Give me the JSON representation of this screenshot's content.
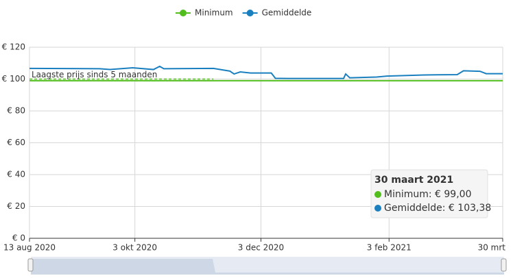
{
  "chart_data": {
    "type": "line",
    "x": [
      "2020-08-13",
      "2020-09-16",
      "2020-09-21",
      "2020-10-02",
      "2020-10-12",
      "2020-10-15",
      "2020-10-17",
      "2020-11-10",
      "2020-11-18",
      "2020-11-20",
      "2020-11-23",
      "2020-11-28",
      "2020-12-08",
      "2020-12-10",
      "2020-12-16",
      "2021-01-12",
      "2021-01-13",
      "2021-01-15",
      "2021-01-28",
      "2021-02-02",
      "2021-02-20",
      "2021-03-08",
      "2021-03-11",
      "2021-03-19",
      "2021-03-22",
      "2021-03-30"
    ],
    "series": [
      {
        "name": "Minimum",
        "color": "#52be1e",
        "values": [
          99,
          99,
          99,
          99,
          99,
          99,
          99,
          99,
          99,
          99,
          99,
          99,
          99,
          99,
          99,
          99,
          99,
          99,
          99,
          99,
          99,
          99,
          99,
          99,
          99,
          99
        ]
      },
      {
        "name": "Gemiddelde",
        "color": "#1a7fbf",
        "values": [
          106.7,
          106.5,
          106.0,
          107.1,
          106.0,
          108.0,
          106.5,
          106.7,
          105.0,
          103.2,
          104.5,
          103.8,
          103.8,
          100.5,
          100.4,
          100.4,
          103.2,
          100.8,
          101.3,
          101.9,
          102.6,
          102.8,
          105.2,
          104.9,
          103.4,
          103.38
        ]
      }
    ],
    "xlim": [
      "2020-08-13",
      "2021-03-30"
    ],
    "xticks": [
      {
        "value": "2020-08-13",
        "label": "13 aug 2020"
      },
      {
        "value": "2020-10-03",
        "label": "3 okt 2020"
      },
      {
        "value": "2020-12-03",
        "label": "3 dec 2020"
      },
      {
        "value": "2021-02-03",
        "label": "3 feb 2021"
      },
      {
        "value": "2021-03-30",
        "label": "30 mrt"
      }
    ],
    "ylim": [
      0,
      120
    ],
    "yticks": [
      {
        "value": 0,
        "label": "€ 0"
      },
      {
        "value": 20,
        "label": "€ 20"
      },
      {
        "value": 40,
        "label": "€ 40"
      },
      {
        "value": 60,
        "label": "€ 60"
      },
      {
        "value": 80,
        "label": "€ 80"
      },
      {
        "value": 100,
        "label": "€ 100"
      },
      {
        "value": 120,
        "label": "€ 120"
      }
    ],
    "grid": true,
    "legend": "top",
    "annotation": {
      "text": "Laagste prijs sinds 5 maanden",
      "value": 100,
      "x_end": "2020-11-10"
    },
    "tooltip": {
      "title": "30 maart 2021",
      "lines": [
        "Minimum: € 99,00",
        "Gemiddelde: € 103,38"
      ]
    }
  }
}
